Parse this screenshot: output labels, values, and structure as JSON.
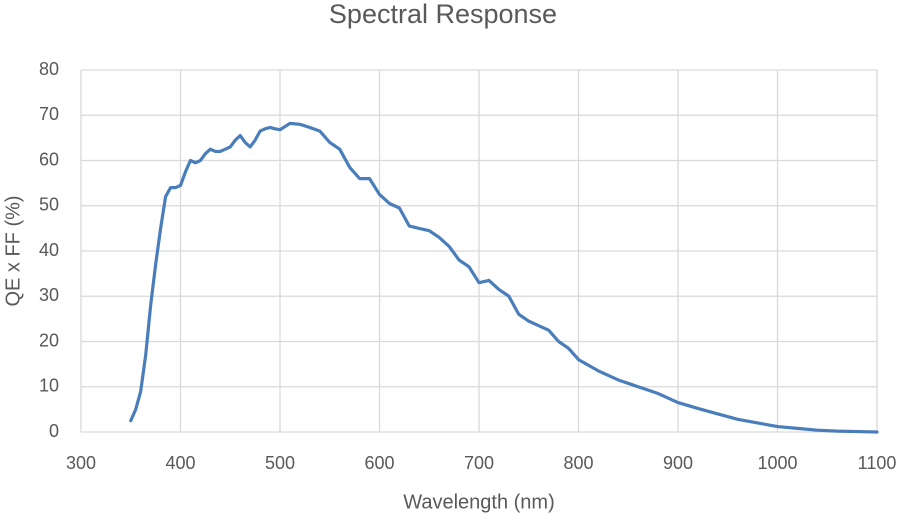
{
  "chart_data": {
    "type": "line",
    "title": "Spectral Response",
    "x_label": "Wavelength (nm)",
    "y_label": "QE x FF (%)",
    "x": [
      350,
      355,
      360,
      365,
      370,
      375,
      380,
      385,
      390,
      395,
      400,
      405,
      410,
      415,
      420,
      425,
      430,
      435,
      440,
      445,
      450,
      455,
      460,
      465,
      470,
      475,
      480,
      485,
      490,
      495,
      500,
      505,
      510,
      520,
      530,
      540,
      550,
      560,
      570,
      580,
      590,
      600,
      610,
      620,
      630,
      640,
      650,
      660,
      670,
      680,
      690,
      700,
      710,
      720,
      730,
      740,
      750,
      760,
      770,
      780,
      790,
      800,
      820,
      840,
      860,
      880,
      900,
      920,
      940,
      960,
      980,
      1000,
      1020,
      1040,
      1060,
      1080,
      1100
    ],
    "series": [
      {
        "name": "QE x FF",
        "color": "#4a7ebb",
        "values": [
          2.5,
          5,
          9,
          17,
          28,
          37,
          45,
          52,
          54,
          54,
          54.5,
          57.5,
          60,
          59.5,
          60,
          61.5,
          62.5,
          62,
          62,
          62.5,
          63,
          64.5,
          65.5,
          64,
          63,
          64.5,
          66.5,
          67,
          67.3,
          67,
          66.8,
          67.5,
          68.2,
          68,
          67.3,
          66.5,
          64,
          62.5,
          58.5,
          56,
          56,
          52.5,
          50.5,
          49.5,
          45.5,
          45,
          44.5,
          43,
          41,
          38,
          36.5,
          33,
          33.5,
          31.5,
          30,
          26,
          24.5,
          23.5,
          22.5,
          20,
          18.5,
          16,
          13.5,
          11.5,
          10,
          8.5,
          6.5,
          5.2,
          4,
          2.8,
          2,
          1.2,
          0.8,
          0.4,
          0.2,
          0.1,
          0
        ]
      }
    ],
    "xlim": [
      300,
      1100
    ],
    "ylim": [
      0,
      80
    ],
    "xticks": [
      300,
      400,
      500,
      600,
      700,
      800,
      900,
      1000,
      1100
    ],
    "yticks": [
      0,
      10,
      20,
      30,
      40,
      50,
      60,
      70,
      80
    ],
    "grid": true
  }
}
